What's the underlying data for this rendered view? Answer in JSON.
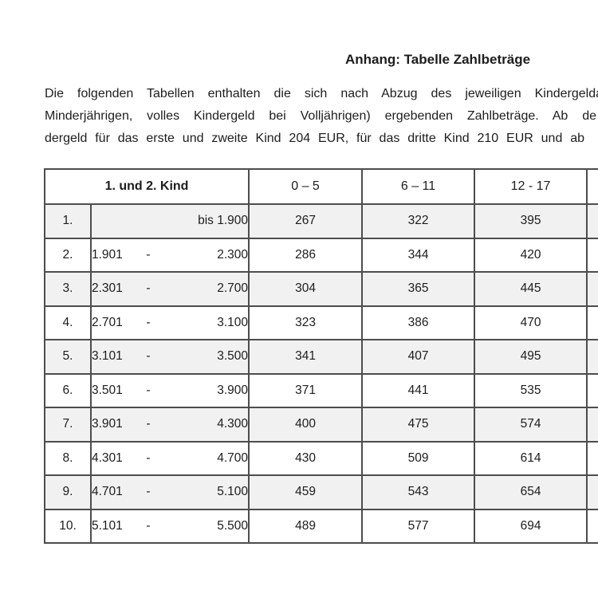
{
  "page": {
    "title": "Anhang: Tabelle Zahlbeträge",
    "intro_lines": [
      "Die folgenden Tabellen enthalten die sich nach Abzug des jeweiligen Kindergelda",
      "Minderjährigen, volles Kindergeld bei Volljährigen) ergebenden Zahlbeträge. Ab de",
      "dergeld für das erste und zweite Kind 204 EUR, für das dritte Kind 210 EUR und ab"
    ]
  },
  "table": {
    "header": {
      "group_label": "1. und 2. Kind",
      "age_columns": [
        "0 – 5",
        "6 – 11",
        "12 - 17"
      ]
    },
    "rows": [
      {
        "num": "1.",
        "low": "",
        "sep": "",
        "high": "bis 1.900",
        "values": [
          "267",
          "322",
          "395"
        ]
      },
      {
        "num": "2.",
        "low": "1.901",
        "sep": "-",
        "high": "2.300",
        "values": [
          "286",
          "344",
          "420"
        ]
      },
      {
        "num": "3.",
        "low": "2.301",
        "sep": "-",
        "high": "2.700",
        "values": [
          "304",
          "365",
          "445"
        ]
      },
      {
        "num": "4.",
        "low": "2.701",
        "sep": "-",
        "high": "3.100",
        "values": [
          "323",
          "386",
          "470"
        ]
      },
      {
        "num": "5.",
        "low": "3.101",
        "sep": "-",
        "high": "3.500",
        "values": [
          "341",
          "407",
          "495"
        ]
      },
      {
        "num": "6.",
        "low": "3.501",
        "sep": "-",
        "high": "3.900",
        "values": [
          "371",
          "441",
          "535"
        ]
      },
      {
        "num": "7.",
        "low": "3.901",
        "sep": "-",
        "high": "4.300",
        "values": [
          "400",
          "475",
          "574"
        ]
      },
      {
        "num": "8.",
        "low": "4.301",
        "sep": "-",
        "high": "4.700",
        "values": [
          "430",
          "509",
          "614"
        ]
      },
      {
        "num": "9.",
        "low": "4.701",
        "sep": "-",
        "high": "5.100",
        "values": [
          "459",
          "543",
          "654"
        ]
      },
      {
        "num": "10.",
        "low": "5.101",
        "sep": "-",
        "high": "5.500",
        "values": [
          "489",
          "577",
          "694"
        ]
      }
    ]
  },
  "colors": {
    "border": "#4d4d4d",
    "row_shaded": "#f1f1f1",
    "text": "#1d1d1d",
    "background": "#ffffff"
  }
}
